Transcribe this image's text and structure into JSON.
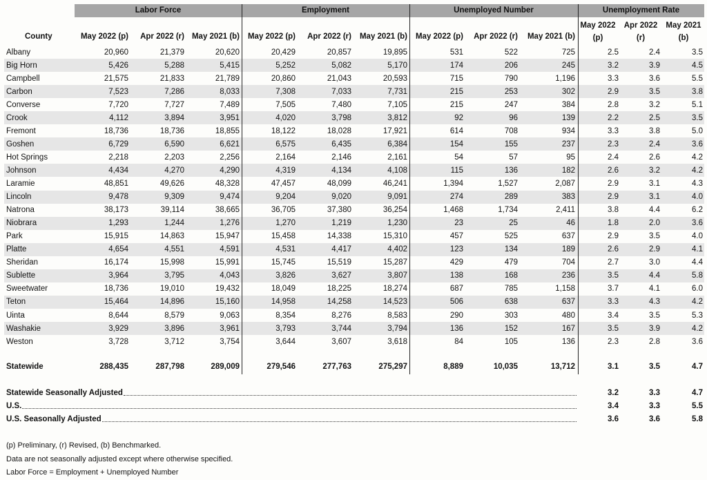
{
  "group_headers": [
    "Labor Force",
    "Employment",
    "Unemployed Number",
    "Unemployment Rate"
  ],
  "column_headers": {
    "county": "County",
    "columns": [
      "May 2022 (p)",
      "Apr 2022 (r)",
      "May 2021 (b)",
      "May 2022 (p)",
      "Apr 2022 (r)",
      "May 2021 (b)",
      "May 2022 (p)",
      "Apr 2022 (r)",
      "May 2021 (b)",
      "May 2022 (p)",
      "Apr 2022 (r)",
      "May 2021 (b)"
    ]
  },
  "rows": [
    {
      "county": "Albany",
      "values": [
        "20,960",
        "21,379",
        "20,620",
        "20,429",
        "20,857",
        "19,895",
        "531",
        "522",
        "725",
        "2.5",
        "2.4",
        "3.5"
      ]
    },
    {
      "county": "Big Horn",
      "values": [
        "5,426",
        "5,288",
        "5,415",
        "5,252",
        "5,082",
        "5,170",
        "174",
        "206",
        "245",
        "3.2",
        "3.9",
        "4.5"
      ]
    },
    {
      "county": "Campbell",
      "values": [
        "21,575",
        "21,833",
        "21,789",
        "20,860",
        "21,043",
        "20,593",
        "715",
        "790",
        "1,196",
        "3.3",
        "3.6",
        "5.5"
      ]
    },
    {
      "county": "Carbon",
      "values": [
        "7,523",
        "7,286",
        "8,033",
        "7,308",
        "7,033",
        "7,731",
        "215",
        "253",
        "302",
        "2.9",
        "3.5",
        "3.8"
      ]
    },
    {
      "county": "Converse",
      "values": [
        "7,720",
        "7,727",
        "7,489",
        "7,505",
        "7,480",
        "7,105",
        "215",
        "247",
        "384",
        "2.8",
        "3.2",
        "5.1"
      ]
    },
    {
      "county": "Crook",
      "values": [
        "4,112",
        "3,894",
        "3,951",
        "4,020",
        "3,798",
        "3,812",
        "92",
        "96",
        "139",
        "2.2",
        "2.5",
        "3.5"
      ]
    },
    {
      "county": "Fremont",
      "values": [
        "18,736",
        "18,736",
        "18,855",
        "18,122",
        "18,028",
        "17,921",
        "614",
        "708",
        "934",
        "3.3",
        "3.8",
        "5.0"
      ]
    },
    {
      "county": "Goshen",
      "values": [
        "6,729",
        "6,590",
        "6,621",
        "6,575",
        "6,435",
        "6,384",
        "154",
        "155",
        "237",
        "2.3",
        "2.4",
        "3.6"
      ]
    },
    {
      "county": "Hot Springs",
      "values": [
        "2,218",
        "2,203",
        "2,256",
        "2,164",
        "2,146",
        "2,161",
        "54",
        "57",
        "95",
        "2.4",
        "2.6",
        "4.2"
      ]
    },
    {
      "county": "Johnson",
      "values": [
        "4,434",
        "4,270",
        "4,290",
        "4,319",
        "4,134",
        "4,108",
        "115",
        "136",
        "182",
        "2.6",
        "3.2",
        "4.2"
      ]
    },
    {
      "county": "Laramie",
      "values": [
        "48,851",
        "49,626",
        "48,328",
        "47,457",
        "48,099",
        "46,241",
        "1,394",
        "1,527",
        "2,087",
        "2.9",
        "3.1",
        "4.3"
      ]
    },
    {
      "county": "Lincoln",
      "values": [
        "9,478",
        "9,309",
        "9,474",
        "9,204",
        "9,020",
        "9,091",
        "274",
        "289",
        "383",
        "2.9",
        "3.1",
        "4.0"
      ]
    },
    {
      "county": "Natrona",
      "values": [
        "38,173",
        "39,114",
        "38,665",
        "36,705",
        "37,380",
        "36,254",
        "1,468",
        "1,734",
        "2,411",
        "3.8",
        "4.4",
        "6.2"
      ]
    },
    {
      "county": "Niobrara",
      "values": [
        "1,293",
        "1,244",
        "1,276",
        "1,270",
        "1,219",
        "1,230",
        "23",
        "25",
        "46",
        "1.8",
        "2.0",
        "3.6"
      ]
    },
    {
      "county": "Park",
      "values": [
        "15,915",
        "14,863",
        "15,947",
        "15,458",
        "14,338",
        "15,310",
        "457",
        "525",
        "637",
        "2.9",
        "3.5",
        "4.0"
      ]
    },
    {
      "county": "Platte",
      "values": [
        "4,654",
        "4,551",
        "4,591",
        "4,531",
        "4,417",
        "4,402",
        "123",
        "134",
        "189",
        "2.6",
        "2.9",
        "4.1"
      ]
    },
    {
      "county": "Sheridan",
      "values": [
        "16,174",
        "15,998",
        "15,991",
        "15,745",
        "15,519",
        "15,287",
        "429",
        "479",
        "704",
        "2.7",
        "3.0",
        "4.4"
      ]
    },
    {
      "county": "Sublette",
      "values": [
        "3,964",
        "3,795",
        "4,043",
        "3,826",
        "3,627",
        "3,807",
        "138",
        "168",
        "236",
        "3.5",
        "4.4",
        "5.8"
      ]
    },
    {
      "county": "Sweetwater",
      "values": [
        "18,736",
        "19,010",
        "19,432",
        "18,049",
        "18,225",
        "18,274",
        "687",
        "785",
        "1,158",
        "3.7",
        "4.1",
        "6.0"
      ]
    },
    {
      "county": "Teton",
      "values": [
        "15,464",
        "14,896",
        "15,160",
        "14,958",
        "14,258",
        "14,523",
        "506",
        "638",
        "637",
        "3.3",
        "4.3",
        "4.2"
      ]
    },
    {
      "county": "Uinta",
      "values": [
        "8,644",
        "8,579",
        "9,063",
        "8,354",
        "8,276",
        "8,583",
        "290",
        "303",
        "480",
        "3.4",
        "3.5",
        "5.3"
      ]
    },
    {
      "county": "Washakie",
      "values": [
        "3,929",
        "3,896",
        "3,961",
        "3,793",
        "3,744",
        "3,794",
        "136",
        "152",
        "167",
        "3.5",
        "3.9",
        "4.2"
      ]
    },
    {
      "county": "Weston",
      "values": [
        "3,728",
        "3,712",
        "3,754",
        "3,644",
        "3,607",
        "3,618",
        "84",
        "105",
        "136",
        "2.3",
        "2.8",
        "3.6"
      ]
    }
  ],
  "statewide": {
    "county": "Statewide",
    "values": [
      "288,435",
      "287,798",
      "289,009",
      "279,546",
      "277,763",
      "275,297",
      "8,889",
      "10,035",
      "13,712",
      "3.1",
      "3.5",
      "4.7"
    ]
  },
  "adjusted": [
    {
      "label": "Statewide Seasonally Adjusted",
      "values": [
        "3.2",
        "3.3",
        "4.7"
      ]
    },
    {
      "label": "U.S.",
      "values": [
        "3.4",
        "3.3",
        "5.5"
      ]
    },
    {
      "label": "U.S. Seasonally Adjusted",
      "values": [
        "3.6",
        "3.6",
        "5.8"
      ]
    }
  ],
  "footnotes": [
    "(p) Preliminary, (r) Revised, (b) Benchmarked.",
    "Data are not seasonally adjusted except where otherwise specified.",
    "Labor Force = Employment + Unemployed Number"
  ]
}
